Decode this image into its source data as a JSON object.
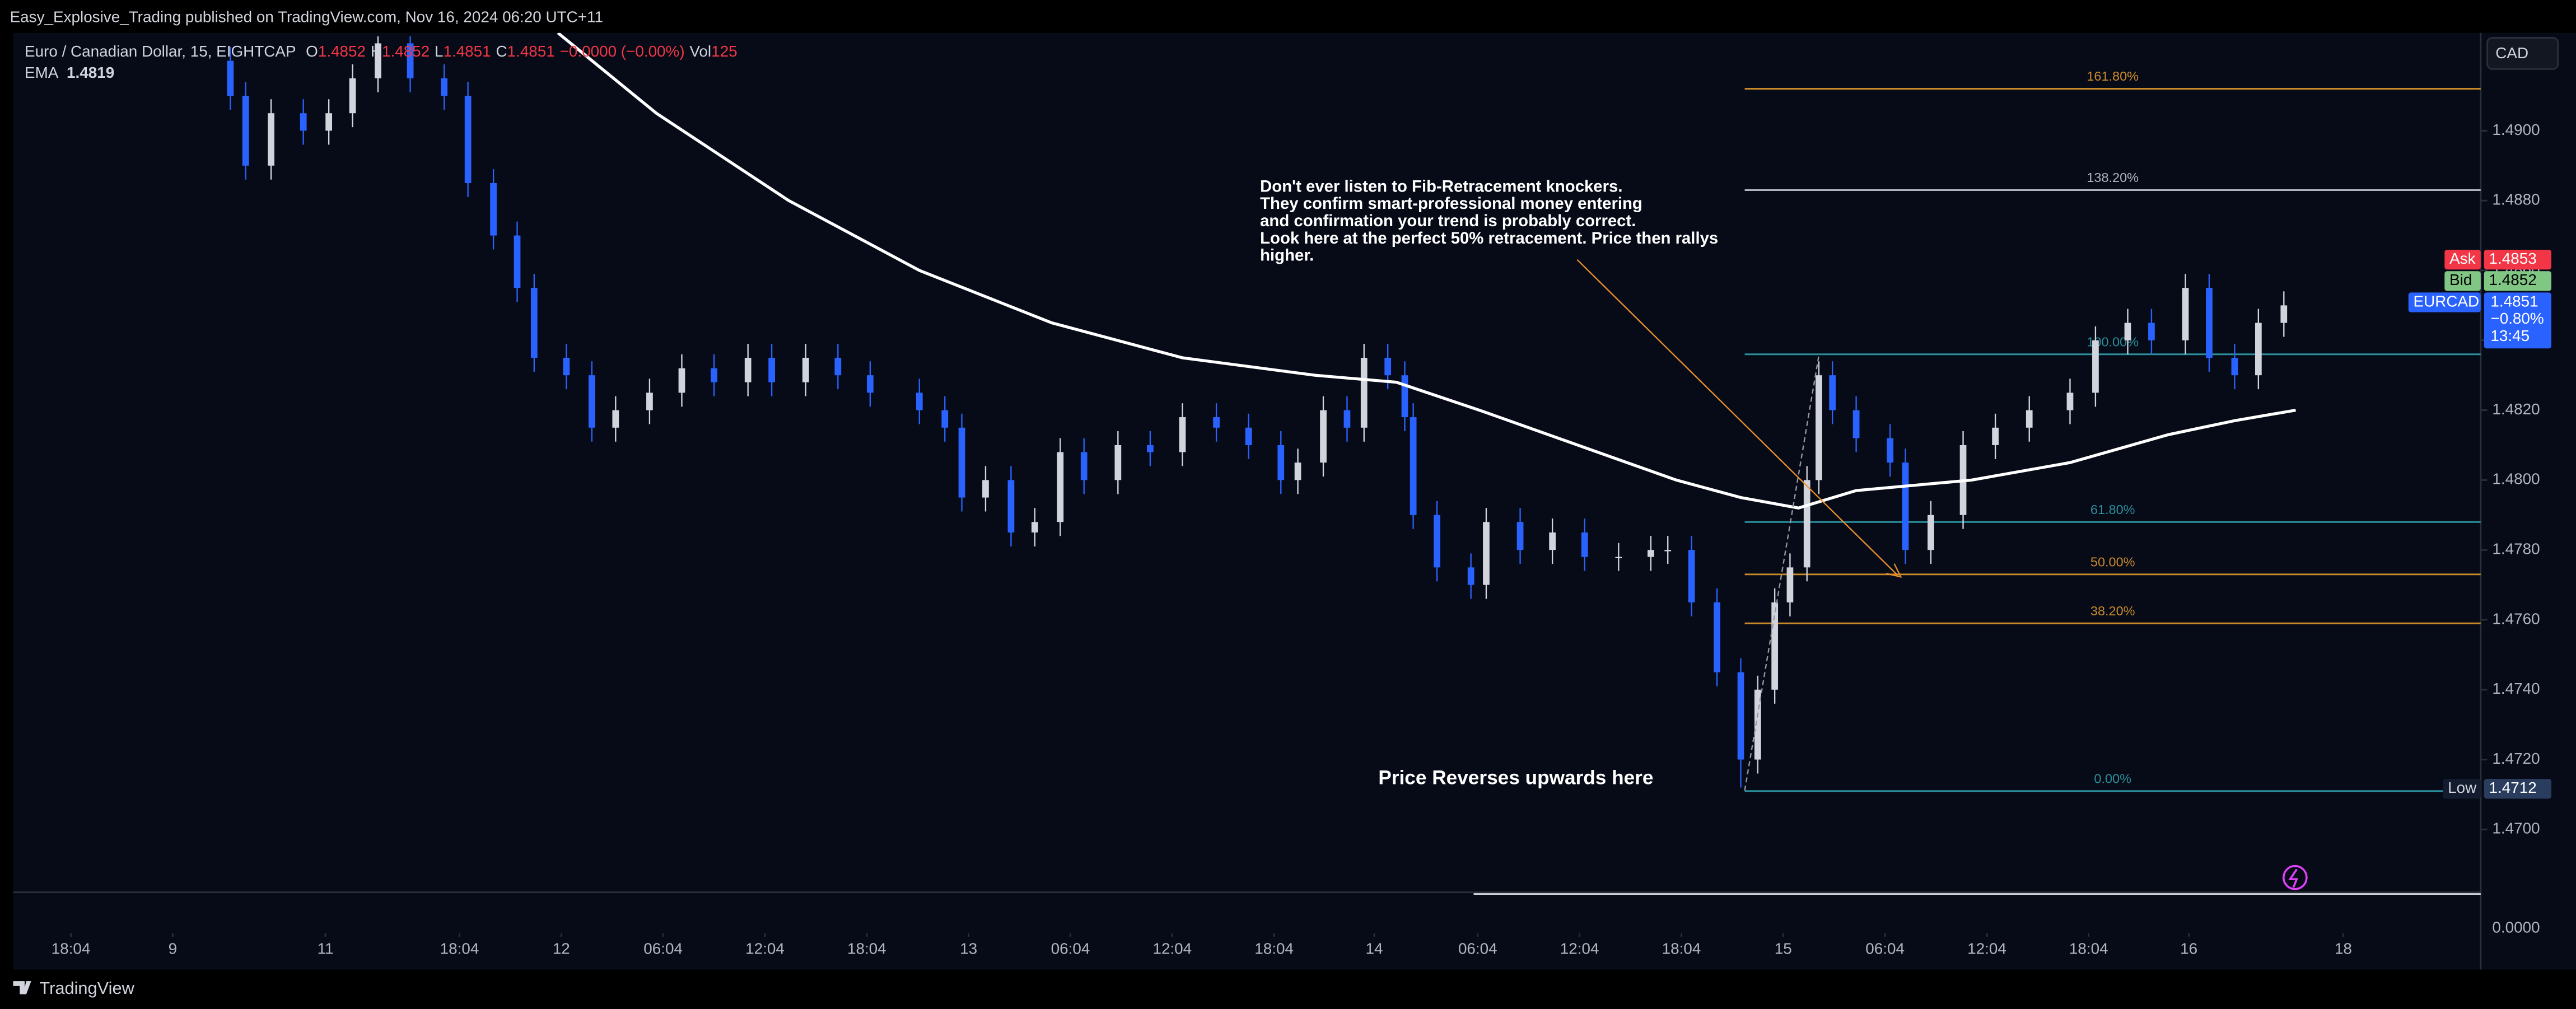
{
  "header": {
    "publisher_line": "Easy_Explosive_Trading published on TradingView.com, Nov 16, 2024 06:20 UTC+11"
  },
  "chart_data": {
    "type": "candlestick",
    "symbol": "Euro / Canadian Dollar, 15, EIGHTCAP",
    "legend_ohlc": [
      {
        "key": "O",
        "value": "1.4852"
      },
      {
        "key": "H",
        "value": "1.4852"
      },
      {
        "key": "L",
        "value": "1.4851"
      },
      {
        "key": "C",
        "value": "1.4851"
      }
    ],
    "change": "−0.0000 (−0.00%)",
    "vol_key": "Vol",
    "vol": "125",
    "ema_label": "EMA",
    "ema_value": "1.4819",
    "currency_button": "CAD",
    "up_color": "#d1d4dc",
    "down_color": "#2962ff",
    "x": [
      12.8,
      13.7,
      15.2,
      17.1,
      18.6,
      20.0,
      21.5,
      23.4,
      25.4,
      26.8,
      28.3,
      29.7,
      30.7,
      32.6,
      34.1,
      35.5,
      37.5,
      39.4,
      41.3,
      43.3,
      44.7,
      46.7,
      48.6,
      50.5,
      53.4,
      54.9,
      55.9,
      57.3,
      58.8,
      60.2,
      61.7,
      63.1,
      65.1,
      67.0,
      68.9,
      70.9,
      72.8,
      74.7,
      75.7,
      77.2,
      78.6,
      79.6,
      81.0,
      82.0,
      82.5,
      83.9,
      85.9,
      86.8,
      88.8,
      90.7,
      92.6,
      94.6,
      96.5,
      97.5,
      98.9,
      100.4,
      101.8,
      102.8,
      103.8,
      104.7,
      105.7,
      106.4,
      107.2,
      108.6,
      110.6,
      111.5,
      113.0,
      114.9,
      116.8,
      118.8,
      121.2,
      122.7,
      124.6,
      126.0,
      128.0,
      129.4,
      130.9,
      132.3,
      133.8
    ],
    "open": [
      1.492,
      1.491,
      1.489,
      1.4905,
      1.49,
      1.4905,
      1.4915,
      1.4925,
      1.4915,
      1.491,
      1.4885,
      1.487,
      1.4855,
      1.4835,
      1.483,
      1.4815,
      1.482,
      1.4825,
      1.4832,
      1.4828,
      1.4835,
      1.4828,
      1.4835,
      1.483,
      1.4825,
      1.482,
      1.4815,
      1.4795,
      1.48,
      1.4785,
      1.4788,
      1.4808,
      1.48,
      1.481,
      1.4808,
      1.4818,
      1.4815,
      1.481,
      1.48,
      1.4805,
      1.482,
      1.4815,
      1.4835,
      1.483,
      1.4818,
      1.479,
      1.4775,
      1.477,
      1.4788,
      1.478,
      1.4785,
      1.4778,
      1.4778,
      1.478,
      1.478,
      1.4765,
      1.4745,
      1.472,
      1.474,
      1.4765,
      1.4775,
      1.48,
      1.483,
      1.482,
      1.4812,
      1.4805,
      1.478,
      1.479,
      1.481,
      1.4815,
      1.482,
      1.4825,
      1.484,
      1.4845,
      1.484,
      1.4855,
      1.4835,
      1.483,
      1.4845
    ],
    "high": [
      1.4924,
      1.4914,
      1.4909,
      1.4909,
      1.4909,
      1.4919,
      1.4927,
      1.4927,
      1.4919,
      1.4914,
      1.4889,
      1.4874,
      1.4859,
      1.4839,
      1.4834,
      1.4824,
      1.4829,
      1.4836,
      1.4836,
      1.4839,
      1.4839,
      1.4839,
      1.4839,
      1.4834,
      1.4829,
      1.4824,
      1.4819,
      1.4804,
      1.4804,
      1.4792,
      1.4812,
      1.4812,
      1.4814,
      1.4814,
      1.4822,
      1.4822,
      1.4819,
      1.4814,
      1.4809,
      1.4824,
      1.4824,
      1.4839,
      1.4839,
      1.4834,
      1.4822,
      1.4794,
      1.4779,
      1.4792,
      1.4792,
      1.4789,
      1.4789,
      1.4782,
      1.4784,
      1.4784,
      1.4784,
      1.4769,
      1.4749,
      1.4744,
      1.4769,
      1.4779,
      1.4804,
      1.4834,
      1.4834,
      1.4824,
      1.4816,
      1.4809,
      1.4794,
      1.4814,
      1.4819,
      1.4824,
      1.4829,
      1.4844,
      1.4849,
      1.4849,
      1.4859,
      1.4859,
      1.4839,
      1.4849,
      1.4854
    ],
    "low": [
      1.4906,
      1.4886,
      1.4886,
      1.4896,
      1.4896,
      1.4901,
      1.4911,
      1.4911,
      1.4906,
      1.4881,
      1.4866,
      1.4851,
      1.4831,
      1.4826,
      1.4811,
      1.4811,
      1.4816,
      1.4821,
      1.4824,
      1.4824,
      1.4824,
      1.4824,
      1.4826,
      1.4821,
      1.4816,
      1.4811,
      1.4791,
      1.4791,
      1.4781,
      1.4781,
      1.4784,
      1.4796,
      1.4796,
      1.4804,
      1.4804,
      1.4811,
      1.4806,
      1.4796,
      1.4796,
      1.4801,
      1.4811,
      1.4811,
      1.4826,
      1.4814,
      1.4786,
      1.4771,
      1.4766,
      1.4766,
      1.4776,
      1.4776,
      1.4774,
      1.4774,
      1.4774,
      1.4776,
      1.4761,
      1.4741,
      1.4712,
      1.4716,
      1.4736,
      1.4761,
      1.4771,
      1.4796,
      1.4816,
      1.4808,
      1.4801,
      1.4776,
      1.4776,
      1.4786,
      1.4806,
      1.4811,
      1.4816,
      1.4821,
      1.4836,
      1.4836,
      1.4836,
      1.4831,
      1.4826,
      1.4826,
      1.4841
    ],
    "close": [
      1.491,
      1.489,
      1.4905,
      1.49,
      1.4905,
      1.4915,
      1.4925,
      1.4915,
      1.491,
      1.4885,
      1.487,
      1.4855,
      1.4835,
      1.483,
      1.4815,
      1.482,
      1.4825,
      1.4832,
      1.4828,
      1.4835,
      1.4828,
      1.4835,
      1.483,
      1.4825,
      1.482,
      1.4815,
      1.4795,
      1.48,
      1.4785,
      1.4788,
      1.4808,
      1.48,
      1.481,
      1.4808,
      1.4818,
      1.4815,
      1.481,
      1.48,
      1.4805,
      1.482,
      1.4815,
      1.4835,
      1.483,
      1.4818,
      1.479,
      1.4775,
      1.477,
      1.4788,
      1.478,
      1.4785,
      1.4778,
      1.4778,
      1.478,
      1.478,
      1.4765,
      1.4745,
      1.472,
      1.474,
      1.4765,
      1.4775,
      1.48,
      1.483,
      1.482,
      1.4812,
      1.4805,
      1.478,
      1.479,
      1.481,
      1.4815,
      1.482,
      1.4825,
      1.484,
      1.4845,
      1.484,
      1.4855,
      1.4835,
      1.483,
      1.4845,
      1.485
    ],
    "ema": {
      "color": "#ffffff",
      "x": [
        32.1,
        37.9,
        45.7,
        53.4,
        61.2,
        68.9,
        76.7,
        81.5,
        86.4,
        92.2,
        98.0,
        101.8,
        105.2,
        108.6,
        115.4,
        121.2,
        127.0,
        130.9,
        134.5
      ],
      "values": [
        1.4928,
        1.4905,
        1.488,
        1.486,
        1.4845,
        1.4835,
        1.483,
        1.4828,
        1.482,
        1.481,
        1.48,
        1.4795,
        1.4792,
        1.4797,
        1.48,
        1.4805,
        1.4813,
        1.4817,
        1.482
      ]
    },
    "xlim": [
      0,
      145.4
    ],
    "xticks": [
      {
        "value": 3.4,
        "label": "18:04"
      },
      {
        "value": 9.4,
        "label": "9"
      },
      {
        "value": 18.4,
        "label": "11"
      },
      {
        "value": 26.3,
        "label": "18:04"
      },
      {
        "value": 32.3,
        "label": "12"
      },
      {
        "value": 38.3,
        "label": "06:04"
      },
      {
        "value": 44.3,
        "label": "12:04"
      },
      {
        "value": 50.3,
        "label": "18:04"
      },
      {
        "value": 56.3,
        "label": "13"
      },
      {
        "value": 62.3,
        "label": "06:04"
      },
      {
        "value": 68.3,
        "label": "12:04"
      },
      {
        "value": 74.3,
        "label": "18:04"
      },
      {
        "value": 80.2,
        "label": "14"
      },
      {
        "value": 86.3,
        "label": "06:04"
      },
      {
        "value": 92.3,
        "label": "12:04"
      },
      {
        "value": 98.3,
        "label": "18:04"
      },
      {
        "value": 104.3,
        "label": "15"
      },
      {
        "value": 110.3,
        "label": "06:04"
      },
      {
        "value": 116.3,
        "label": "12:04"
      },
      {
        "value": 122.3,
        "label": "18:04"
      },
      {
        "value": 128.2,
        "label": "16"
      },
      {
        "value": 137.3,
        "label": "18"
      }
    ],
    "ylim": [
      1.4682,
      1.4928
    ],
    "yticks": [
      {
        "value": 1.47,
        "label": "1.4700"
      },
      {
        "value": 1.472,
        "label": "1.4720"
      },
      {
        "value": 1.474,
        "label": "1.4740"
      },
      {
        "value": 1.476,
        "label": "1.4760"
      },
      {
        "value": 1.478,
        "label": "1.4780"
      },
      {
        "value": 1.48,
        "label": "1.4800"
      },
      {
        "value": 1.482,
        "label": "1.4820"
      },
      {
        "value": 1.484,
        "label": "1.4840"
      },
      {
        "value": 1.486,
        "label": "1.4860"
      },
      {
        "value": 1.488,
        "label": "1.4880"
      },
      {
        "value": 1.49,
        "label": "1.4900"
      }
    ],
    "volume_axis_label": "0.0000",
    "fib_levels": [
      {
        "ratio_label": "161.80%",
        "price": 1.4912,
        "color": "#c98a2a"
      },
      {
        "ratio_label": "138.20%",
        "price": 1.4883,
        "color": "#b2b5be"
      },
      {
        "ratio_label": "100.00%",
        "price": 1.4836,
        "color": "#2a8f9a"
      },
      {
        "ratio_label": "61.80%",
        "price": 1.4788,
        "color": "#2a8f9a"
      },
      {
        "ratio_label": "50.00%",
        "price": 1.4773,
        "color": "#c98a2a"
      },
      {
        "ratio_label": "38.20%",
        "price": 1.4759,
        "color": "#c98a2a"
      },
      {
        "ratio_label": "0.00%",
        "price": 1.4711,
        "color": "#2a8f9a"
      }
    ],
    "annotations": {
      "note_lines": [
        "Don't ever listen to Fib-Retracement knockers.",
        "They confirm smart-professional money entering",
        "and confirmation your trend is probably correct.",
        "Look here at the perfect 50% retracement. Price then rallys",
        "higher."
      ],
      "reversal": "Price Reverses upwards here"
    },
    "price_tags": {
      "ask_label": "Ask",
      "ask": "1.4853",
      "bid_label": "Bid",
      "bid": "1.4852",
      "symbol": "EURCAD",
      "last": "1.4851",
      "change": "−0.80%",
      "countdown": "13:45",
      "low_label": "Low",
      "low": "1.4712"
    }
  },
  "footer": {
    "brand": "TradingView"
  }
}
